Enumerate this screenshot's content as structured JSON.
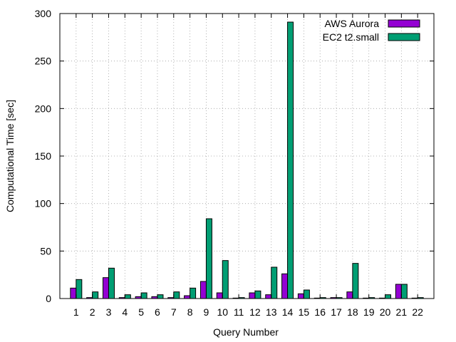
{
  "chart_data": {
    "type": "bar",
    "xlabel": "Query Number",
    "ylabel": "Computational Time [sec]",
    "ylim": [
      0,
      300
    ],
    "yticks": [
      0,
      50,
      100,
      150,
      200,
      250,
      300
    ],
    "grid": true,
    "legend_position": "top-right",
    "categories": [
      "1",
      "2",
      "3",
      "4",
      "5",
      "6",
      "7",
      "8",
      "9",
      "10",
      "11",
      "12",
      "13",
      "14",
      "15",
      "16",
      "17",
      "18",
      "19",
      "20",
      "21",
      "22"
    ],
    "series": [
      {
        "name": "AWS Aurora",
        "color": "#9400d3",
        "values": [
          11,
          1,
          22,
          1,
          2,
          2,
          1,
          3,
          18,
          6,
          0.5,
          6,
          4,
          26,
          5,
          0.5,
          1,
          7,
          0.5,
          0.5,
          15,
          0.5
        ]
      },
      {
        "name": "EC2 t2.small",
        "color": "#009e73",
        "values": [
          20,
          7,
          32,
          4,
          6,
          4,
          7,
          11,
          84,
          40,
          1,
          8,
          33,
          291,
          9,
          1,
          1,
          37,
          1,
          4,
          15,
          1
        ]
      }
    ]
  }
}
